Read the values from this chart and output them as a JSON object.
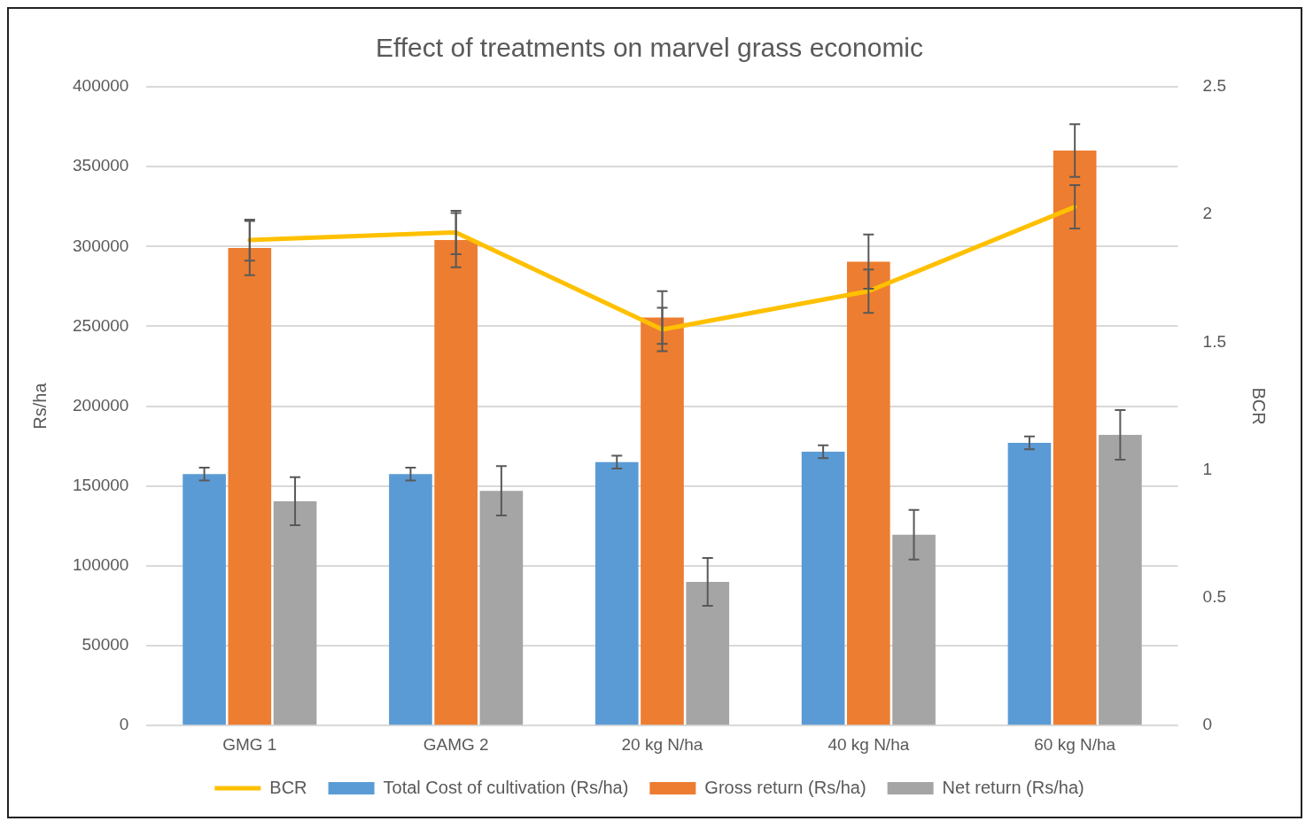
{
  "chart_data": {
    "type": "bar",
    "title": "Effect of treatments on marvel grass economic",
    "ylabel": "Rs/ha",
    "y2label": "BCR",
    "categories": [
      "GMG 1",
      "GAMG 2",
      "20 kg N/ha",
      "40 kg N/ha",
      "60 kg N/ha"
    ],
    "series": [
      {
        "name": "Total Cost of cultivation (Rs/ha)",
        "color": "#5b9bd5",
        "values": [
          157500,
          157500,
          165000,
          171500,
          177000
        ],
        "errors": [
          4000,
          4000,
          4000,
          4000,
          4000
        ]
      },
      {
        "name": "Gross return (Rs/ha)",
        "color": "#ed7d31",
        "values": [
          299000,
          304000,
          255500,
          290500,
          360000
        ],
        "errors": [
          17000,
          17000,
          16500,
          17000,
          16500
        ]
      },
      {
        "name": "Net return (Rs/ha)",
        "color": "#a5a5a5",
        "values": [
          140500,
          147000,
          90000,
          119500,
          182000
        ],
        "errors": [
          15000,
          15500,
          15000,
          15500,
          15500
        ]
      },
      {
        "name": "BCR",
        "type": "line",
        "axis": "y2",
        "color": "#ffc000",
        "values": [
          1.9,
          1.93,
          1.55,
          1.7,
          2.03
        ],
        "errors": [
          0.08,
          0.085,
          0.085,
          0.085,
          0.085
        ]
      }
    ],
    "ylim": [
      0,
      400000
    ],
    "yticks": [
      0,
      50000,
      100000,
      150000,
      200000,
      250000,
      300000,
      350000,
      400000
    ],
    "y2lim": [
      0,
      2.5
    ],
    "y2ticks": [
      0,
      0.5,
      1,
      1.5,
      2,
      2.5
    ],
    "grid": "y",
    "legend": "bottom",
    "marker": "none"
  }
}
